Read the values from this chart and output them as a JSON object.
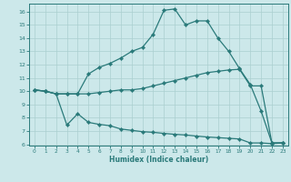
{
  "line1_x": [
    0,
    1,
    2,
    3,
    4,
    5,
    6,
    7,
    8,
    9,
    10,
    11,
    12,
    13,
    14,
    15,
    16,
    17,
    18,
    19,
    20,
    21,
    22,
    23
  ],
  "line1_y": [
    10.1,
    10.0,
    9.8,
    9.8,
    9.8,
    9.8,
    9.9,
    10.0,
    10.1,
    10.1,
    10.2,
    10.4,
    10.6,
    10.8,
    11.0,
    11.2,
    11.4,
    11.5,
    11.6,
    11.65,
    10.4,
    10.4,
    6.1,
    6.1
  ],
  "line2_x": [
    0,
    1,
    2,
    3,
    4,
    5,
    6,
    7,
    8,
    9,
    10,
    11,
    12,
    13,
    14,
    15,
    16,
    17,
    18,
    19,
    20,
    21,
    22,
    23
  ],
  "line2_y": [
    10.1,
    10.0,
    9.8,
    7.45,
    8.3,
    7.65,
    7.5,
    7.4,
    7.15,
    7.05,
    6.95,
    6.9,
    6.82,
    6.75,
    6.7,
    6.62,
    6.55,
    6.5,
    6.45,
    6.4,
    6.1,
    6.1,
    6.05,
    6.1
  ],
  "line3_x": [
    0,
    1,
    2,
    3,
    4,
    5,
    6,
    7,
    8,
    9,
    10,
    11,
    12,
    13,
    14,
    15,
    16,
    17,
    18,
    19,
    20,
    21,
    22,
    23
  ],
  "line3_y": [
    10.1,
    10.0,
    9.8,
    9.8,
    9.8,
    11.3,
    11.8,
    12.1,
    12.5,
    13.0,
    13.3,
    14.3,
    16.1,
    16.2,
    15.0,
    15.3,
    15.3,
    14.0,
    13.0,
    11.7,
    10.5,
    8.5,
    6.1,
    6.1
  ],
  "color": "#2a7a7a",
  "marker": "D",
  "marker_size": 2.2,
  "bg_color": "#cce8ea",
  "grid_color": "#aacfcf",
  "xlabel": "Humidex (Indice chaleur)",
  "xlim": [
    -0.5,
    23.5
  ],
  "ylim": [
    5.9,
    16.6
  ],
  "xticks": [
    0,
    1,
    2,
    3,
    4,
    5,
    6,
    7,
    8,
    9,
    10,
    11,
    12,
    13,
    14,
    15,
    16,
    17,
    18,
    19,
    20,
    21,
    22,
    23
  ],
  "yticks": [
    6,
    7,
    8,
    9,
    10,
    11,
    12,
    13,
    14,
    15,
    16
  ]
}
